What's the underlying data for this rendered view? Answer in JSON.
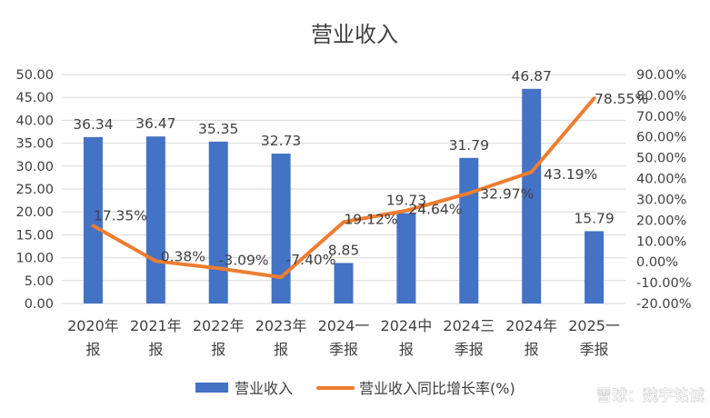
{
  "chart_data": {
    "type": "bar",
    "title": "营业收入",
    "categories": [
      [
        "2020年",
        "报"
      ],
      [
        "2021年",
        "报"
      ],
      [
        "2022年",
        "报"
      ],
      [
        "2023年",
        "报"
      ],
      [
        "2024一",
        "季报"
      ],
      [
        "2024中",
        "报"
      ],
      [
        "2024三",
        "季报"
      ],
      [
        "2024年",
        "报"
      ],
      [
        "2025一",
        "季报"
      ]
    ],
    "series": [
      {
        "name": "营业收入",
        "type": "bar",
        "axis": "left",
        "color": "#4472C4",
        "values": [
          36.34,
          36.47,
          35.35,
          32.73,
          8.85,
          19.73,
          31.79,
          46.87,
          15.79
        ],
        "labels": [
          "36.34",
          "36.47",
          "35.35",
          "32.73",
          "8.85",
          "19.73",
          "31.79",
          "46.87",
          "15.79"
        ]
      },
      {
        "name": "营业收入同比增长率(%)",
        "type": "line",
        "axis": "right",
        "color": "#ED7D31",
        "values": [
          17.35,
          0.38,
          -3.09,
          -7.4,
          19.12,
          24.64,
          32.97,
          43.19,
          78.55
        ],
        "labels": [
          "17.35%",
          "0.38%",
          "-3.09%",
          "-7.40%",
          "19.12%",
          "24.64%",
          "32.97%",
          "43.19%",
          "78.55%"
        ]
      }
    ],
    "y_left": {
      "ylim": [
        0,
        50
      ],
      "ticks": [
        "0.00",
        "5.00",
        "10.00",
        "15.00",
        "20.00",
        "25.00",
        "30.00",
        "35.00",
        "40.00",
        "45.00",
        "50.00"
      ]
    },
    "y_right": {
      "ylim": [
        -20,
        90
      ],
      "ticks": [
        "-20.00%",
        "-10.00%",
        "0.00%",
        "10.00%",
        "20.00%",
        "30.00%",
        "40.00%",
        "50.00%",
        "60.00%",
        "70.00%",
        "80.00%",
        "90.00%"
      ]
    },
    "grid": true,
    "legend": "bottom",
    "watermark": "雪球：魏宇铭诚"
  }
}
